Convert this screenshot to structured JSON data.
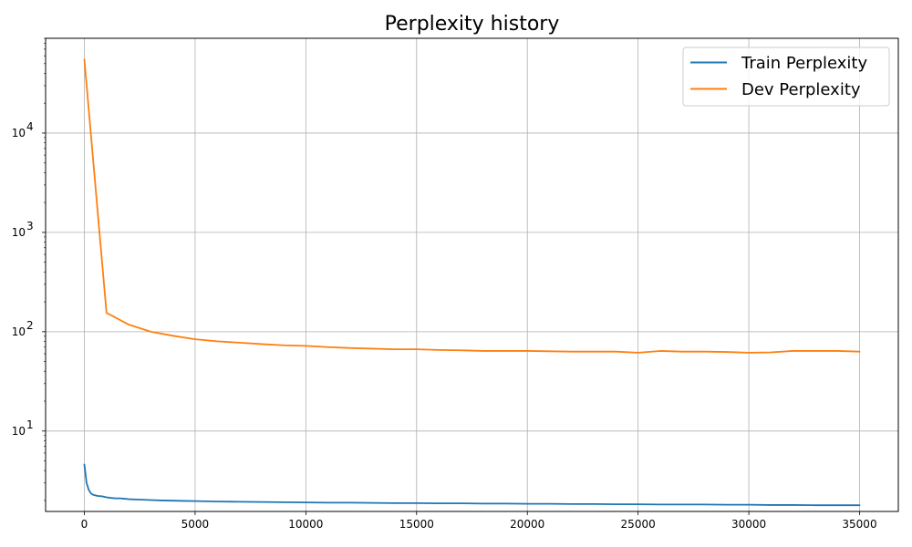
{
  "chart_data": {
    "type": "line",
    "title": "Perplexity history",
    "xlabel": "",
    "ylabel": "",
    "xlim": [
      -1750,
      36750
    ],
    "ylim": [
      1.55,
      90000
    ],
    "yscale": "log",
    "grid": true,
    "legend_position": "top-right",
    "x_ticks": [
      0,
      5000,
      10000,
      15000,
      20000,
      25000,
      30000,
      35000
    ],
    "x_tick_labels": [
      "0",
      "5000",
      "10000",
      "15000",
      "20000",
      "25000",
      "30000",
      "35000"
    ],
    "y_major_ticks": [
      {
        "value": 10,
        "base": "10",
        "exp": "1"
      },
      {
        "value": 100,
        "base": "10",
        "exp": "2"
      },
      {
        "value": 1000,
        "base": "10",
        "exp": "3"
      },
      {
        "value": 10000,
        "base": "10",
        "exp": "4"
      }
    ],
    "series": [
      {
        "name": "Train Perplexity",
        "color": "#1f77b4",
        "x": [
          0,
          100,
          200,
          300,
          400,
          500,
          600,
          800,
          1000,
          1200,
          1400,
          1600,
          1800,
          2000,
          2500,
          3000,
          3500,
          4000,
          4500,
          5000,
          5500,
          6000,
          7000,
          8000,
          9000,
          10000,
          11000,
          12000,
          13000,
          14000,
          15000,
          16000,
          17000,
          18000,
          19000,
          20000,
          21000,
          22000,
          23000,
          24000,
          25000,
          26000,
          27000,
          28000,
          29000,
          30000,
          31000,
          32000,
          33000,
          34000,
          35000
        ],
        "values": [
          4.6,
          3.0,
          2.55,
          2.35,
          2.28,
          2.25,
          2.22,
          2.2,
          2.15,
          2.12,
          2.1,
          2.1,
          2.08,
          2.06,
          2.04,
          2.02,
          2.0,
          1.99,
          1.98,
          1.97,
          1.96,
          1.95,
          1.94,
          1.93,
          1.92,
          1.91,
          1.9,
          1.9,
          1.89,
          1.88,
          1.88,
          1.87,
          1.87,
          1.86,
          1.86,
          1.85,
          1.85,
          1.84,
          1.84,
          1.83,
          1.83,
          1.82,
          1.82,
          1.82,
          1.81,
          1.81,
          1.8,
          1.8,
          1.79,
          1.79,
          1.79
        ]
      },
      {
        "name": "Dev Perplexity",
        "color": "#ff7f0e",
        "x": [
          0,
          1000,
          2000,
          3000,
          4000,
          5000,
          6000,
          7000,
          8000,
          9000,
          10000,
          11000,
          12000,
          13000,
          14000,
          15000,
          16000,
          17000,
          18000,
          19000,
          20000,
          21000,
          22000,
          23000,
          24000,
          25000,
          26000,
          27000,
          28000,
          29000,
          30000,
          31000,
          32000,
          33000,
          34000,
          35000
        ],
        "values": [
          55000,
          155,
          118,
          100,
          91,
          84,
          80,
          77.5,
          75,
          73,
          72,
          70,
          68.5,
          67.5,
          66.5,
          66.5,
          65.5,
          65,
          64,
          64,
          64,
          63.5,
          63,
          63,
          63,
          61.5,
          64,
          63,
          63,
          62.5,
          61.5,
          62,
          64,
          64,
          64,
          63
        ]
      }
    ]
  }
}
